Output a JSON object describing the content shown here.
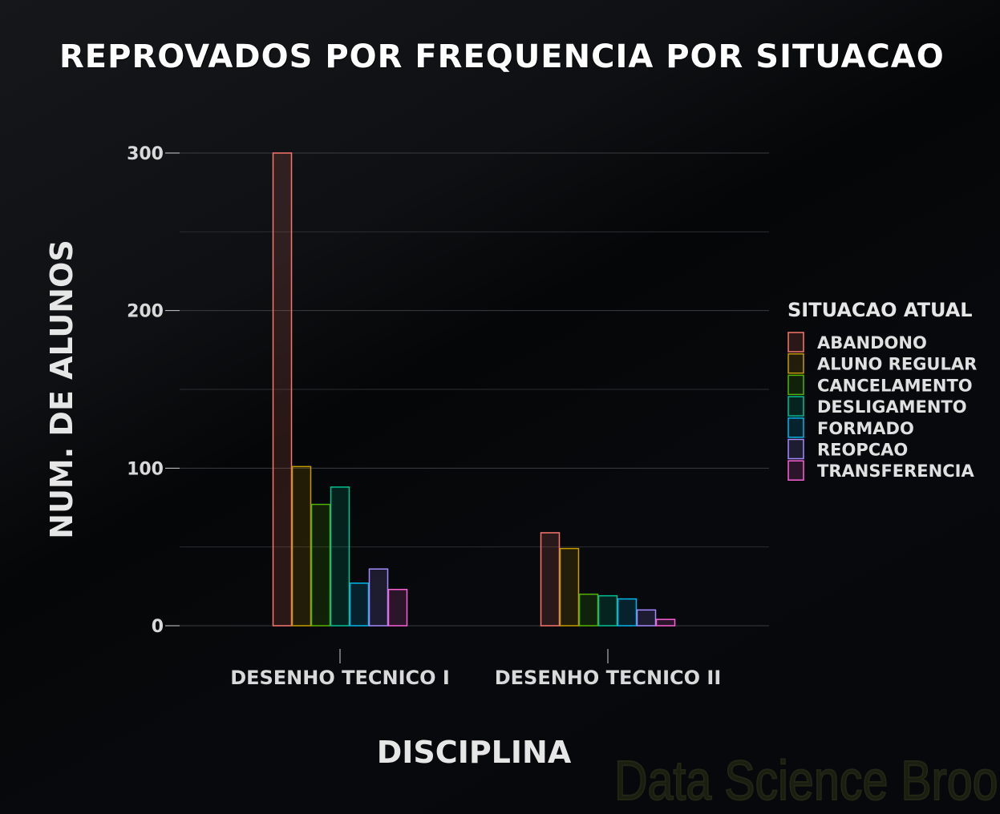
{
  "chart_data": {
    "type": "bar",
    "title": "REPROVADOS POR FREQUENCIA POR SITUACAO",
    "xlabel": "DISCIPLINA",
    "ylabel": "NUM. DE ALUNOS",
    "categories": [
      "DESENHO TECNICO I",
      "DESENHO TECNICO II"
    ],
    "ylim": [
      0,
      300
    ],
    "yticks": [
      0,
      100,
      200,
      300
    ],
    "grid": true,
    "legend_title": "SITUACAO ATUAL",
    "legend_position": "right",
    "series": [
      {
        "name": "ABANDONO",
        "color": "#f8766d",
        "values": [
          300,
          59
        ]
      },
      {
        "name": "ALUNO REGULAR",
        "color": "#c49a00",
        "values": [
          101,
          49
        ]
      },
      {
        "name": "CANCELAMENTO",
        "color": "#53b400",
        "values": [
          77,
          20
        ]
      },
      {
        "name": "DESLIGAMENTO",
        "color": "#00c094",
        "values": [
          88,
          19
        ]
      },
      {
        "name": "FORMADO",
        "color": "#00b6eb",
        "values": [
          27,
          17
        ]
      },
      {
        "name": "REOPCAO",
        "color": "#a58aff",
        "values": [
          36,
          10
        ]
      },
      {
        "name": "TRANSFERENCIA",
        "color": "#fb61d7",
        "values": [
          23,
          4
        ]
      }
    ]
  },
  "watermark": "Data Science Broon"
}
